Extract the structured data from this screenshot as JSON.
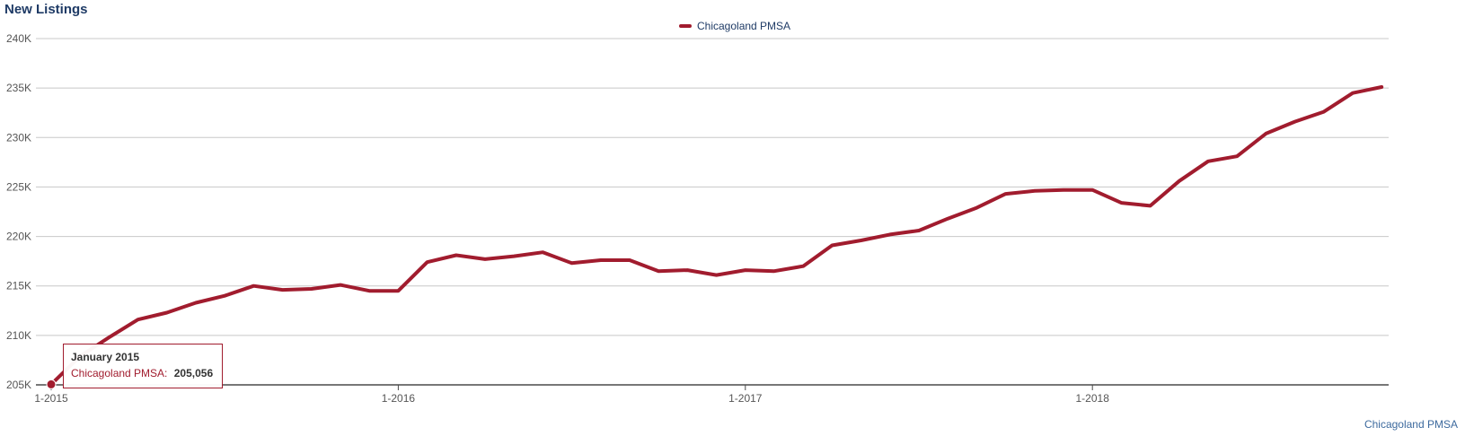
{
  "chart_data": {
    "type": "line",
    "title": "New Listings",
    "xlabel": "",
    "ylabel": "",
    "ylim": [
      205000,
      240000
    ],
    "yticks": [
      "205K",
      "210K",
      "215K",
      "220K",
      "225K",
      "230K",
      "235K",
      "240K"
    ],
    "ytick_values": [
      205000,
      210000,
      215000,
      220000,
      225000,
      230000,
      235000,
      240000
    ],
    "xticks": [
      "1-2015",
      "1-2016",
      "1-2017",
      "1-2018"
    ],
    "xtick_index": [
      0,
      12,
      24,
      36
    ],
    "legend_position": "top-center",
    "grid": true,
    "series": [
      {
        "name": "Chicagoland PMSA",
        "color": "#a11c2e",
        "values": [
          205056,
          207900,
          209800,
          211600,
          212300,
          213300,
          214000,
          215000,
          214600,
          214700,
          215100,
          214500,
          214500,
          217400,
          218100,
          217700,
          218000,
          218400,
          217300,
          217600,
          217600,
          216500,
          216600,
          216100,
          216600,
          216500,
          217000,
          219100,
          219600,
          220200,
          220600,
          221800,
          222900,
          224300,
          224600,
          224700,
          224700,
          223400,
          223100,
          225600,
          227600,
          228100,
          230400,
          231600,
          232600,
          234500,
          235100
        ]
      }
    ]
  },
  "tooltip": {
    "title": "January 2015",
    "series_label": "Chicagoland PMSA:",
    "value": "205,056"
  },
  "credit": "Chicagoland PMSA"
}
